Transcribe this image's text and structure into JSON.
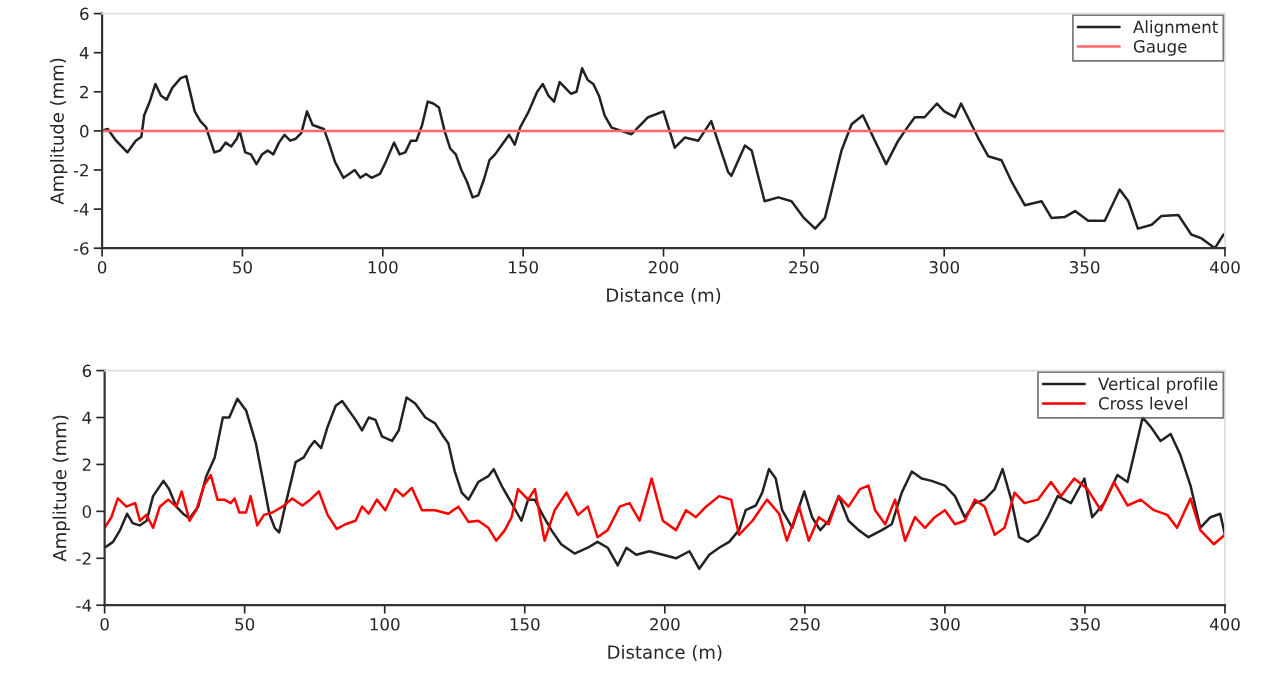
{
  "chart_data": [
    {
      "type": "line",
      "xlabel": "Distance (m)",
      "ylabel": "Amplitude (mm)",
      "xlim": [
        0,
        400
      ],
      "ylim": [
        -6,
        6
      ],
      "xticks": [
        0,
        50,
        100,
        150,
        200,
        250,
        300,
        350,
        400
      ],
      "yticks": [
        -6,
        -4,
        -2,
        0,
        2,
        4,
        6
      ],
      "grid": false,
      "legend": "top right",
      "marker": "none",
      "line_style": "solid",
      "series": [
        {
          "name": "Alignment",
          "color": "#222222",
          "x": [
            0,
            2,
            5,
            9,
            12,
            14,
            15,
            17,
            19,
            21,
            23,
            25,
            28,
            30,
            33,
            35,
            37,
            40,
            42,
            44,
            46,
            48,
            49,
            51,
            53,
            55,
            57,
            59,
            61,
            63,
            65,
            67,
            69,
            71,
            73,
            75,
            77,
            79,
            81,
            83,
            86,
            88,
            90,
            92,
            94,
            96,
            99,
            101,
            104,
            106,
            108,
            110,
            112,
            114,
            116,
            118,
            120,
            122,
            124,
            126,
            128,
            130,
            132,
            134,
            136,
            138,
            140,
            142,
            145,
            147,
            149,
            152,
            155,
            157,
            159,
            161,
            163,
            165,
            167,
            169,
            171,
            173,
            175,
            177,
            179,
            181.5,
            188.6,
            194.5,
            200,
            204,
            207.6,
            212.4,
            217,
            223,
            224.2,
            229,
            231.4,
            236,
            240.9,
            245.6,
            250,
            254,
            257.5,
            263.4,
            267,
            271,
            275.3,
            279.3,
            283.6,
            286,
            289.5,
            293,
            297.4,
            300,
            303.8,
            306,
            312,
            315.7,
            320.4,
            324,
            328.7,
            334.7,
            338.2,
            343,
            346.6,
            351.3,
            357.2,
            362.5,
            365.6,
            369,
            373.9,
            377.4,
            383.4,
            388,
            391.7,
            396.4,
            399.5
          ],
          "values": [
            0,
            0.1,
            -0.5,
            -1.1,
            -0.5,
            -0.3,
            0.8,
            1.5,
            2.4,
            1.8,
            1.6,
            2.2,
            2.7,
            2.8,
            1.0,
            0.5,
            0.2,
            -1.1,
            -1.0,
            -0.6,
            -0.8,
            -0.4,
            0,
            -1.1,
            -1.2,
            -1.7,
            -1.2,
            -1.0,
            -1.2,
            -0.6,
            -0.2,
            -0.5,
            -0.4,
            -0.1,
            1.0,
            0.3,
            0.2,
            0.1,
            -0.7,
            -1.6,
            -2.4,
            -2.2,
            -2.0,
            -2.4,
            -2.2,
            -2.4,
            -2.2,
            -1.6,
            -0.6,
            -1.2,
            -1.1,
            -0.5,
            -0.5,
            0.3,
            1.5,
            1.4,
            1.2,
            0,
            -0.9,
            -1.2,
            -2.0,
            -2.6,
            -3.4,
            -3.3,
            -2.5,
            -1.5,
            -1.2,
            -0.8,
            -0.2,
            -0.7,
            0.2,
            1.0,
            2.0,
            2.4,
            1.8,
            1.5,
            2.5,
            2.2,
            1.9,
            2.0,
            3.2,
            2.6,
            2.4,
            1.8,
            0.8,
            0.17,
            -0.17,
            0.7,
            1.0,
            -0.86,
            -0.34,
            -0.5,
            0.5,
            -2.1,
            -2.3,
            -0.75,
            -1.0,
            -3.6,
            -3.4,
            -3.6,
            -4.45,
            -5.0,
            -4.45,
            -1.0,
            0.34,
            0.8,
            -0.5,
            -1.7,
            -0.5,
            0,
            0.7,
            0.7,
            1.4,
            1.0,
            0.7,
            1.4,
            -0.34,
            -1.3,
            -1.5,
            -2.6,
            -3.8,
            -3.6,
            -4.45,
            -4.4,
            -4.1,
            -4.6,
            -4.6,
            -3.0,
            -3.6,
            -5.0,
            -4.8,
            -4.35,
            -4.3,
            -5.3,
            -5.5,
            -6.0,
            -5.3
          ]
        },
        {
          "name": "Gauge",
          "color": "#ff6666",
          "x": [
            0,
            400
          ],
          "values": [
            0,
            0
          ]
        }
      ]
    },
    {
      "type": "line",
      "xlabel": "Distance (m)",
      "ylabel": "Amplitude (mm)",
      "xlim": [
        0,
        400
      ],
      "ylim": [
        -4,
        6
      ],
      "xticks": [
        0,
        50,
        100,
        150,
        200,
        250,
        300,
        350,
        400
      ],
      "yticks": [
        -4,
        -2,
        0,
        2,
        4,
        6
      ],
      "grid": false,
      "legend": "top right",
      "marker": "none",
      "line_style": "solid",
      "series": [
        {
          "name": "Vertical profile",
          "color": "#222222",
          "x": [
            0,
            3,
            5.5,
            8,
            10,
            12.5,
            15,
            17.3,
            21,
            23,
            25.6,
            28,
            30.3,
            33.4,
            36.3,
            39.3,
            42.2,
            44.5,
            47.4,
            50.5,
            54,
            56.9,
            58.8,
            60.7,
            62.3,
            64.7,
            68.2,
            71.1,
            73,
            74.9,
            77.3,
            79.6,
            82.5,
            84.8,
            87.2,
            89.6,
            91.9,
            94.3,
            96.7,
            99,
            102.6,
            105,
            107.8,
            110.9,
            114.5,
            118,
            120.9,
            122.7,
            125,
            127.5,
            129.9,
            133.4,
            137,
            138.9,
            141.7,
            145.3,
            148.8,
            151.2,
            153.6,
            156.4,
            159.5,
            163,
            167.8,
            172.5,
            176,
            179.6,
            183.2,
            186.3,
            189.8,
            194.5,
            199.3,
            204,
            208.8,
            212.3,
            215.9,
            219.4,
            223,
            226.5,
            228.9,
            232.5,
            234.8,
            237.2,
            239.6,
            241.9,
            245.5,
            249.8,
            252.6,
            255.5,
            258.5,
            262.1,
            265.6,
            269.2,
            272.7,
            277.5,
            281,
            284.6,
            288.2,
            291.7,
            295.3,
            300,
            303.6,
            307.1,
            310.7,
            314.2,
            317.8,
            320.6,
            323.7,
            326.5,
            329.6,
            333.2,
            336.7,
            340.3,
            345,
            349.8,
            352.6,
            356.9,
            361.6,
            365.2,
            367.5,
            370.6,
            373.5,
            377,
            380.6,
            384.1,
            387.7,
            391.2,
            394.8,
            398.3,
            400
          ],
          "values": [
            -1.55,
            -1.3,
            -0.8,
            -0.1,
            -0.5,
            -0.6,
            -0.4,
            0.65,
            1.3,
            0.95,
            0.2,
            -0.1,
            -0.3,
            0.2,
            1.5,
            2.3,
            4.0,
            4.0,
            4.8,
            4.3,
            2.9,
            1.1,
            -0.1,
            -0.7,
            -0.9,
            0.35,
            2.1,
            2.3,
            2.7,
            3.0,
            2.7,
            3.6,
            4.5,
            4.7,
            4.3,
            3.9,
            3.45,
            4.0,
            3.9,
            3.2,
            3.0,
            3.45,
            4.85,
            4.6,
            4.0,
            3.75,
            3.2,
            2.9,
            1.7,
            0.8,
            0.5,
            1.25,
            1.5,
            1.8,
            1.1,
            0.35,
            -0.4,
            0.5,
            0.5,
            -0.15,
            -0.8,
            -1.4,
            -1.8,
            -1.55,
            -1.3,
            -1.55,
            -2.3,
            -1.55,
            -1.85,
            -1.7,
            -1.85,
            -2.0,
            -1.7,
            -2.45,
            -1.85,
            -1.55,
            -1.3,
            -0.8,
            0.05,
            0.25,
            0.8,
            1.8,
            1.4,
            0.05,
            -0.7,
            0.85,
            -0.25,
            -0.8,
            -0.4,
            0.65,
            -0.4,
            -0.8,
            -1.1,
            -0.8,
            -0.55,
            0.8,
            1.7,
            1.4,
            1.3,
            1.1,
            0.65,
            -0.25,
            0.35,
            0.5,
            0.95,
            1.8,
            0.5,
            -1.1,
            -1.3,
            -1.0,
            -0.25,
            0.65,
            0.35,
            1.4,
            -0.25,
            0.35,
            1.55,
            1.25,
            2.4,
            4.0,
            3.6,
            3.0,
            3.3,
            2.4,
            1.1,
            -0.7,
            -0.25,
            -0.1,
            -1.0
          ]
        },
        {
          "name": "Cross level",
          "color": "#ff0000",
          "x": [
            0,
            2.4,
            4.7,
            7.8,
            10.9,
            12.6,
            14.9,
            17.3,
            19.7,
            22.7,
            25.6,
            27.5,
            30.3,
            32.7,
            35.5,
            37.9,
            40.3,
            42.7,
            45,
            46.4,
            48.1,
            50.5,
            52.1,
            54.5,
            56.9,
            59.9,
            63.5,
            67,
            70.6,
            73.4,
            76.5,
            79.6,
            82.9,
            86,
            89.6,
            91.9,
            94.3,
            97.2,
            100.2,
            103.8,
            106.6,
            109.7,
            113.3,
            118,
            122.7,
            126.3,
            129.9,
            133.4,
            137,
            139.8,
            142.9,
            145.3,
            147.6,
            151.2,
            153.6,
            157.1,
            160.7,
            164.9,
            169,
            172.5,
            176,
            179.6,
            183.9,
            187.4,
            191,
            195.3,
            199.3,
            204,
            207.6,
            211.1,
            214.7,
            219.4,
            223.7,
            226.5,
            231.3,
            236.5,
            240.8,
            243.6,
            247.9,
            251.4,
            255,
            258.5,
            262.1,
            265.6,
            269.7,
            272.7,
            275.1,
            278.7,
            282.2,
            285.8,
            289.3,
            292.9,
            296.4,
            300,
            303.6,
            307.1,
            310.7,
            314.2,
            317.8,
            321.3,
            324.9,
            328.4,
            333.2,
            337.9,
            341.5,
            346.2,
            350.9,
            355.7,
            360.4,
            365.2,
            369.9,
            374.6,
            379.4,
            382.9,
            387.7,
            391.2,
            396,
            400
          ],
          "values": [
            -0.7,
            -0.25,
            0.55,
            0.2,
            0.35,
            -0.4,
            -0.15,
            -0.7,
            0.2,
            0.5,
            0.2,
            0.85,
            -0.4,
            0.05,
            1.1,
            1.55,
            0.5,
            0.5,
            0.35,
            0.55,
            -0.05,
            -0.05,
            0.65,
            -0.6,
            -0.15,
            -0.05,
            0.2,
            0.55,
            0.25,
            0.5,
            0.85,
            -0.15,
            -0.75,
            -0.55,
            -0.4,
            0.2,
            -0.1,
            0.5,
            0.05,
            0.95,
            0.65,
            1.0,
            0.05,
            0.05,
            -0.1,
            0.2,
            -0.45,
            -0.4,
            -0.7,
            -1.25,
            -0.8,
            -0.25,
            0.95,
            0.5,
            0.95,
            -1.25,
            0.05,
            0.8,
            -0.15,
            0.2,
            -1.1,
            -0.8,
            0.2,
            0.35,
            -0.4,
            1.4,
            -0.4,
            -0.8,
            0.05,
            -0.25,
            0.2,
            0.65,
            0.5,
            -1.0,
            -0.4,
            0.5,
            -0.1,
            -1.25,
            0.2,
            -1.25,
            -0.25,
            -0.55,
            0.65,
            0.2,
            0.95,
            1.1,
            0.05,
            -0.55,
            0.5,
            -1.25,
            -0.25,
            -0.7,
            -0.25,
            0.05,
            -0.55,
            -0.4,
            0.5,
            0.2,
            -1.0,
            -0.7,
            0.8,
            0.35,
            0.5,
            1.25,
            0.65,
            1.4,
            0.95,
            0.05,
            1.25,
            0.25,
            0.5,
            0.05,
            -0.15,
            -0.7,
            0.55,
            -0.8,
            -1.4,
            -1.0
          ]
        }
      ]
    }
  ]
}
